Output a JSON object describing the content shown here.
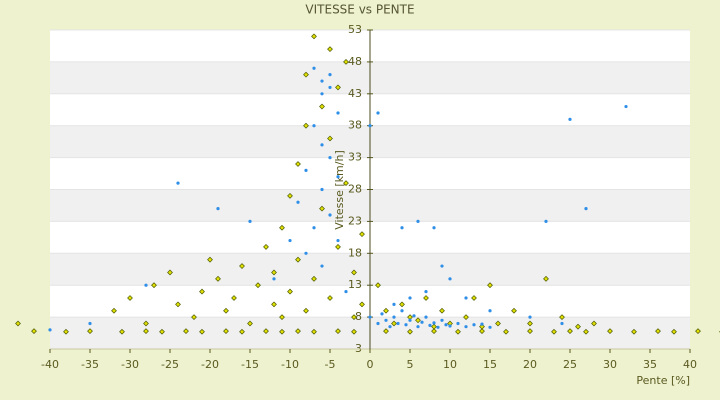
{
  "chart_data": {
    "type": "scatter",
    "title": "VITESSE vs PENTE",
    "xlabel": "Pente [%]",
    "ylabel": "Vitesse [km/h]",
    "xlim": [
      -40,
      40
    ],
    "xticks": [
      -40,
      -35,
      -30,
      -25,
      -20,
      -15,
      -10,
      -5,
      0,
      5,
      10,
      15,
      20,
      25,
      30,
      35,
      40
    ],
    "ylim": [
      3,
      53
    ],
    "yticks": [
      3,
      8,
      13,
      18,
      23,
      28,
      33,
      38,
      43,
      48,
      53
    ],
    "grid": true,
    "series": [
      {
        "color": "#e0e000",
        "x": [
          -44,
          -42,
          -38,
          -35,
          -31,
          -28,
          -26,
          -23,
          -21,
          -18,
          -16,
          -13,
          -11,
          -9,
          -7,
          -4,
          -2,
          2,
          5,
          8,
          11,
          14,
          17,
          20,
          23,
          25,
          27,
          30,
          33,
          36,
          38,
          41,
          44,
          -32,
          -30,
          -28,
          -27,
          -25,
          -24,
          -22,
          -21,
          -20,
          -19,
          -18,
          -17,
          -16,
          -15,
          -14,
          -13,
          -12,
          -12,
          -11,
          -11,
          -10,
          -10,
          -9,
          -9,
          -8,
          -8,
          -8,
          -7,
          -7,
          -6,
          -6,
          -5,
          -5,
          -5,
          -4,
          -4,
          -3,
          -3,
          -2,
          -2,
          -1,
          -1,
          1,
          2,
          3,
          4,
          5,
          6,
          7,
          8,
          9,
          10,
          12,
          13,
          14,
          15,
          16,
          18,
          20,
          22,
          24,
          26,
          28
        ],
        "values": [
          7,
          5.8,
          5.7,
          5.8,
          5.7,
          5.8,
          5.7,
          5.8,
          5.7,
          5.8,
          5.7,
          5.8,
          5.7,
          5.8,
          5.7,
          5.8,
          5.7,
          5.8,
          5.7,
          5.8,
          5.7,
          5.8,
          5.7,
          5.8,
          5.7,
          5.8,
          5.7,
          5.8,
          5.7,
          5.8,
          5.7,
          5.8,
          5.7,
          9,
          11,
          7,
          13,
          15,
          10,
          8,
          12,
          17,
          14,
          9,
          11,
          16,
          7,
          13,
          19,
          10,
          15,
          8,
          22,
          12,
          27,
          17,
          32,
          9,
          38,
          46,
          52,
          14,
          41,
          25,
          50,
          36,
          11,
          44,
          19,
          29,
          48,
          15,
          8,
          21,
          10,
          13,
          9,
          7,
          10,
          8,
          7.5,
          11,
          6.5,
          9,
          7,
          8,
          11,
          6.5,
          13,
          7,
          9,
          7,
          14,
          8,
          6.5,
          7
        ]
      },
      {
        "color": "#2f8fe8",
        "x": [
          -7,
          -6,
          -5,
          -6,
          -5,
          -4,
          -7,
          -6,
          -5,
          -8,
          -4,
          -6,
          -9,
          -5,
          -7,
          -10,
          -4,
          -8,
          -6,
          -12,
          -3,
          0,
          1,
          1.5,
          2,
          2.5,
          3,
          3.5,
          4,
          4.5,
          5,
          5.5,
          6,
          6.5,
          7,
          7.5,
          8,
          8.5,
          9,
          9.5,
          10,
          11,
          12,
          13,
          14,
          15,
          3,
          5,
          7,
          4,
          6,
          8,
          9,
          10,
          12,
          15,
          20,
          24,
          0,
          1,
          32,
          25,
          -24,
          -19,
          27,
          22,
          -15,
          -28,
          -35,
          -40
        ],
        "values": [
          47,
          45,
          46,
          43,
          44,
          40,
          38,
          35,
          33,
          31,
          30,
          28,
          26,
          24,
          22,
          20,
          20,
          18,
          16,
          14,
          12,
          8,
          7,
          8.5,
          7.5,
          6.5,
          8,
          7,
          9,
          6.8,
          7.5,
          8.2,
          6.5,
          7.2,
          8,
          6.7,
          7.1,
          6.4,
          7.5,
          6.8,
          6.6,
          7,
          6.5,
          6.8,
          6.9,
          6.4,
          10,
          11,
          12,
          22,
          23,
          22,
          16,
          14,
          11,
          9,
          8,
          7,
          38,
          40,
          41,
          39,
          29,
          25,
          25,
          23,
          23,
          13,
          7,
          6
        ]
      }
    ]
  }
}
